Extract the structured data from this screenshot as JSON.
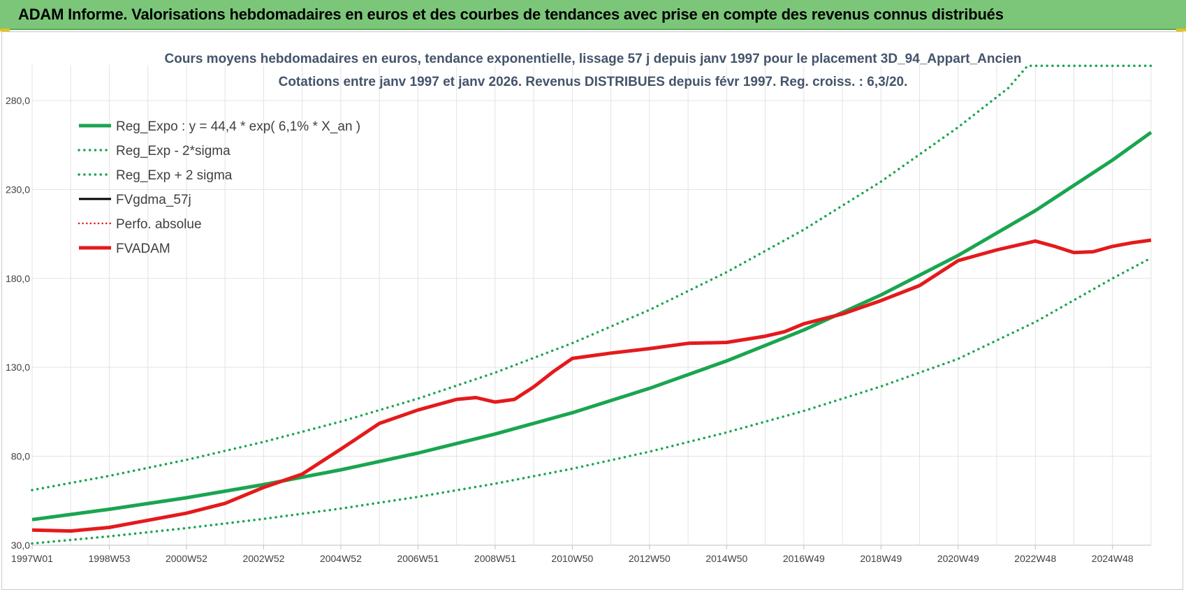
{
  "header": {
    "title": "ADAM Informe. Valorisations hebdomadaires en euros et des courbes de tendances avec prise en compte des revenus connus distribués"
  },
  "chart_data": {
    "type": "line",
    "title": "Cours moyens hebdomadaires en euros, tendance exponentielle, lissage 57 j depuis janv 1997  pour le placement 3D_94_Appart_Ancien",
    "subtitle": "Cotations entre janv 1997 et janv 2026. Revenus DISTRIBUES depuis févr 1997. Reg. croiss. : 6,3/20.",
    "xlabel": "",
    "ylabel": "",
    "xlim": [
      1997.0,
      2026.0
    ],
    "ylim": [
      30,
      300
    ],
    "y_ticks": [
      30,
      80,
      130,
      180,
      230,
      280
    ],
    "y_tick_labels": [
      "30,0",
      "80,0",
      "130,0",
      "180,0",
      "230,0",
      "280,0"
    ],
    "x_ticks": [
      {
        "x": 1997.0,
        "label": "1997W01"
      },
      {
        "x": 1999.0,
        "label": "1998W53"
      },
      {
        "x": 2001.0,
        "label": "2000W52"
      },
      {
        "x": 2003.0,
        "label": "2002W52"
      },
      {
        "x": 2005.0,
        "label": "2004W52"
      },
      {
        "x": 2007.0,
        "label": "2006W51"
      },
      {
        "x": 2009.0,
        "label": "2008W51"
      },
      {
        "x": 2011.0,
        "label": "2010W50"
      },
      {
        "x": 2013.0,
        "label": "2012W50"
      },
      {
        "x": 2015.0,
        "label": "2014W50"
      },
      {
        "x": 2017.0,
        "label": "2016W49"
      },
      {
        "x": 2019.0,
        "label": "2018W49"
      },
      {
        "x": 2021.0,
        "label": "2020W49"
      },
      {
        "x": 2023.0,
        "label": "2022W48"
      },
      {
        "x": 2025.0,
        "label": "2024W48"
      }
    ],
    "grid": true,
    "legend_position": "top-left",
    "series": [
      {
        "name": "Reg_Expo : y = 44,4 * exp( 6,1% *  X_an )",
        "color": "#1aa550",
        "style": "solid",
        "width": 5,
        "x": [
          1997,
          1999,
          2001,
          2003,
          2005,
          2007,
          2009,
          2011,
          2013,
          2015,
          2017,
          2019,
          2021,
          2023,
          2025,
          2026
        ],
        "values": [
          44.4,
          50.2,
          56.7,
          64.1,
          72.4,
          81.8,
          92.5,
          104.5,
          118.2,
          133.6,
          151.0,
          170.7,
          192.9,
          218.1,
          246.5,
          262.1
        ]
      },
      {
        "name": "Reg_Exp - 2*sigma",
        "color": "#1aa550",
        "style": "dotted",
        "width": 3.5,
        "x": [
          1997,
          1999,
          2001,
          2003,
          2005,
          2007,
          2009,
          2011,
          2013,
          2015,
          2017,
          2019,
          2021,
          2023,
          2025,
          2026
        ],
        "values": [
          31.0,
          35.0,
          39.6,
          44.8,
          50.6,
          57.2,
          64.6,
          73.0,
          82.6,
          93.4,
          105.5,
          119.3,
          134.8,
          155.5,
          180.0,
          191.5
        ]
      },
      {
        "name": "Reg_Exp + 2 sigma",
        "color": "#1aa550",
        "style": "dotted",
        "width": 3.5,
        "x": [
          1997,
          1999,
          2001,
          2003,
          2005,
          2007,
          2009,
          2011,
          2013,
          2015,
          2017,
          2019,
          2021,
          2022.3,
          2022.8,
          2026
        ],
        "values": [
          61.0,
          69.0,
          78.0,
          88.1,
          99.5,
          112.4,
          127.0,
          143.6,
          162.3,
          183.5,
          207.4,
          234.4,
          265.0,
          287.0,
          299.5,
          299.5
        ]
      },
      {
        "name": "FVgdma_57j",
        "color": "#000000",
        "style": "solid",
        "width": 3,
        "x": [],
        "values": []
      },
      {
        "name": "Perfo. absolue",
        "color": "#e41a1c",
        "style": "dotted",
        "width": 2.5,
        "x": [],
        "values": []
      },
      {
        "name": "FVADAM",
        "color": "#e41a1c",
        "style": "solid",
        "width": 5,
        "x": [
          1997,
          1998,
          1999,
          2000,
          2001,
          2002,
          2003,
          2004,
          2005,
          2006,
          2007,
          2008,
          2008.5,
          2009,
          2009.5,
          2010,
          2010.5,
          2011,
          2011.5,
          2012,
          2013,
          2014,
          2015,
          2016,
          2016.5,
          2017,
          2018,
          2019,
          2020,
          2021,
          2022,
          2023,
          2023.5,
          2024,
          2024.5,
          2025,
          2025.5,
          2026
        ],
        "values": [
          38.5,
          38.0,
          40.0,
          44.0,
          48.0,
          53.5,
          62.5,
          70.0,
          84.0,
          98.5,
          106.0,
          112.0,
          113.0,
          110.5,
          112.0,
          119.0,
          127.5,
          135.0,
          136.5,
          138.0,
          140.5,
          143.5,
          144.0,
          147.5,
          150.0,
          154.5,
          160.0,
          167.5,
          176.0,
          190.0,
          196.0,
          201.0,
          198.0,
          194.5,
          195.0,
          198.0,
          200.0,
          201.5
        ]
      }
    ]
  }
}
